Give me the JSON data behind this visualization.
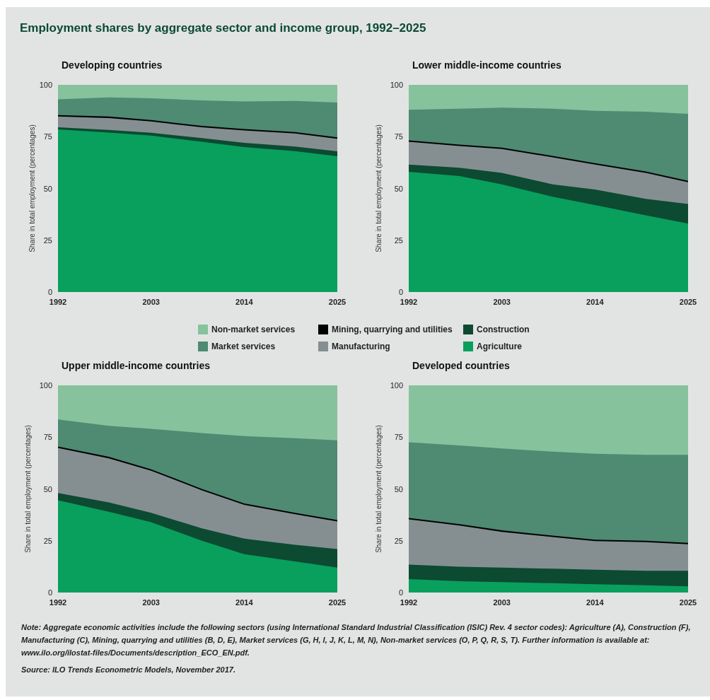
{
  "chart_data": [
    {
      "type": "area",
      "stacked": true,
      "title": "Developing countries",
      "ylabel": "Share in total employment (percentages)",
      "legend": "bottom",
      "annotations": [
        "Employment shares by aggregate sector and income group, 1992–2025"
      ],
      "x": [
        1992,
        1998,
        2003,
        2009,
        2014,
        2020,
        2025
      ],
      "xlim": [
        1992,
        2025
      ],
      "xticks": [
        1992,
        2003,
        2014,
        2025
      ],
      "ylim": [
        0,
        100
      ],
      "yticks": [
        0,
        25,
        50,
        75,
        100
      ],
      "series": [
        {
          "name": "Agriculture",
          "color": "#08a05c",
          "values": [
            78.5,
            77,
            75.5,
            72.5,
            70,
            68,
            65.5
          ]
        },
        {
          "name": "Construction",
          "color": "#0c4a32",
          "values": [
            1,
            1.2,
            1.4,
            1.8,
            2,
            2.2,
            2.4
          ]
        },
        {
          "name": "Manufacturing",
          "color": "#858f92",
          "values": [
            5.2,
            5.8,
            5.4,
            5.2,
            6,
            6.3,
            6.1
          ]
        },
        {
          "name": "Mining, quarrying and utilities",
          "color": "#000000",
          "values": [
            0.7,
            0.7,
            0.7,
            0.7,
            0.7,
            0.7,
            0.7
          ]
        },
        {
          "name": "Market services",
          "color": "#4f8a73",
          "values": [
            7.6,
            9.2,
            10.5,
            12.3,
            13.3,
            15,
            16.8
          ]
        },
        {
          "name": "Non-market services",
          "color": "#86c29c",
          "values": [
            7,
            6.1,
            6.5,
            7.5,
            8,
            7.8,
            8.5
          ]
        }
      ]
    },
    {
      "type": "area",
      "stacked": true,
      "title": "Lower middle-income countries",
      "ylabel": "Share in total employment (percentages)",
      "x": [
        1992,
        1998,
        2003,
        2009,
        2014,
        2020,
        2025
      ],
      "xlim": [
        1992,
        2025
      ],
      "xticks": [
        1992,
        2003,
        2014,
        2025
      ],
      "ylim": [
        0,
        100
      ],
      "yticks": [
        0,
        25,
        50,
        75,
        100
      ],
      "series": [
        {
          "name": "Agriculture",
          "color": "#08a05c",
          "values": [
            58,
            56,
            52,
            46,
            42,
            37,
            33
          ]
        },
        {
          "name": "Construction",
          "color": "#0c4a32",
          "values": [
            3.5,
            4,
            5.5,
            6,
            7.5,
            8,
            9.5
          ]
        },
        {
          "name": "Manufacturing",
          "color": "#858f92",
          "values": [
            11,
            10.5,
            11.5,
            13,
            12,
            12.5,
            10.5
          ]
        },
        {
          "name": "Mining, quarrying and utilities",
          "color": "#000000",
          "values": [
            0.7,
            0.7,
            0.7,
            0.7,
            0.7,
            0.7,
            0.7
          ]
        },
        {
          "name": "Market services",
          "color": "#4f8a73",
          "values": [
            14.8,
            17.3,
            19.3,
            22.8,
            25.3,
            28.8,
            32.3
          ]
        },
        {
          "name": "Non-market services",
          "color": "#86c29c",
          "values": [
            12,
            11.5,
            11,
            11.5,
            12.5,
            13,
            14
          ]
        }
      ]
    },
    {
      "type": "area",
      "stacked": true,
      "title": "Upper middle-income countries",
      "ylabel": "Share in total employment (percentages)",
      "x": [
        1992,
        1998,
        2003,
        2009,
        2014,
        2020,
        2025
      ],
      "xlim": [
        1992,
        2025
      ],
      "xticks": [
        1992,
        2003,
        2014,
        2025
      ],
      "ylim": [
        0,
        100
      ],
      "yticks": [
        0,
        25,
        50,
        75,
        100
      ],
      "series": [
        {
          "name": "Agriculture",
          "color": "#08a05c",
          "values": [
            44.5,
            39,
            34,
            25,
            18.5,
            15,
            12
          ]
        },
        {
          "name": "Construction",
          "color": "#0c4a32",
          "values": [
            3.5,
            4.5,
            4.5,
            6,
            7.5,
            8,
            9
          ]
        },
        {
          "name": "Manufacturing",
          "color": "#858f92",
          "values": [
            21.8,
            21.3,
            20.3,
            18.3,
            16.3,
            14.8,
            13.3
          ]
        },
        {
          "name": "Mining, quarrying and utilities",
          "color": "#000000",
          "values": [
            0.7,
            0.7,
            0.7,
            0.7,
            0.7,
            0.7,
            0.7
          ]
        },
        {
          "name": "Market services",
          "color": "#4f8a73",
          "values": [
            13,
            15,
            19.5,
            27,
            32.5,
            36,
            38.5
          ]
        },
        {
          "name": "Non-market services",
          "color": "#86c29c",
          "values": [
            16.5,
            19.5,
            21,
            23,
            24.5,
            25.5,
            26.5
          ]
        }
      ]
    },
    {
      "type": "area",
      "stacked": true,
      "title": "Developed countries",
      "ylabel": "Share in total employment (percentages)",
      "annotations": [
        "Note: Aggregate economic activities include the following sectors (using International Standard Industrial Classification (ISIC) Rev. 4 sector codes): Agriculture (A), Construction (F), Manufacturing (C), Mining, quarrying and utilities (B, D, E), Market services (G, H, I, J, K, L, M, N), Non-market services (O, P, Q, R, S, T). Further information is available at: www.ilo.org/ilostat-files/Documents/description_ECO_EN.pdf.",
        "Source: ILO Trends Econometric Models, November 2017."
      ],
      "x": [
        1992,
        1998,
        2003,
        2009,
        2014,
        2020,
        2025
      ],
      "xlim": [
        1992,
        2025
      ],
      "xticks": [
        1992,
        2003,
        2014,
        2025
      ],
      "ylim": [
        0,
        100
      ],
      "yticks": [
        0,
        25,
        50,
        75,
        100
      ],
      "series": [
        {
          "name": "Agriculture",
          "color": "#08a05c",
          "values": [
            6.5,
            5.5,
            5,
            4.5,
            4,
            3.5,
            3
          ]
        },
        {
          "name": "Construction",
          "color": "#0c4a32",
          "values": [
            7,
            7,
            7,
            7,
            7,
            7,
            7.5
          ]
        },
        {
          "name": "Manufacturing",
          "color": "#858f92",
          "values": [
            21.8,
            19.8,
            17.3,
            15.3,
            13.8,
            13.8,
            12.8
          ]
        },
        {
          "name": "Mining, quarrying and utilities",
          "color": "#000000",
          "values": [
            0.7,
            0.7,
            0.7,
            0.7,
            0.7,
            0.7,
            0.7
          ]
        },
        {
          "name": "Market services",
          "color": "#4f8a73",
          "values": [
            36.5,
            38,
            39.5,
            40.5,
            41.5,
            41.5,
            42.5
          ]
        },
        {
          "name": "Non-market services",
          "color": "#86c29c",
          "values": [
            27.5,
            29,
            30.5,
            32,
            33,
            33.5,
            33.5
          ]
        }
      ]
    }
  ]
}
